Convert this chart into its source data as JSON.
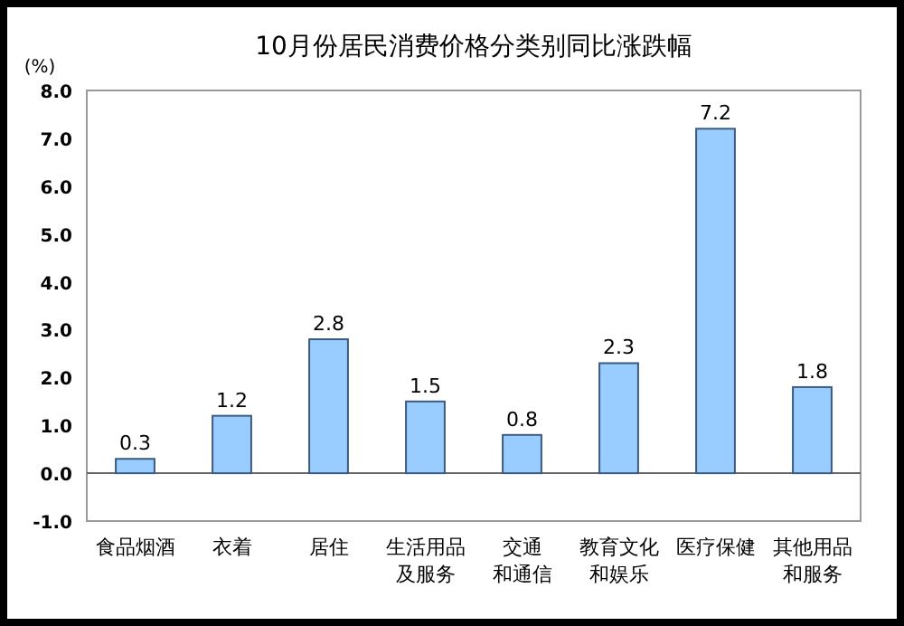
{
  "chart_data": {
    "type": "bar",
    "title": "10月份居民消费价格分类别同比涨跌幅",
    "ylabel": "(%)",
    "categories": [
      "食品烟酒",
      "衣着",
      "居住",
      "生活用品及服务",
      "交通和通信",
      "教育文化和娱乐",
      "医疗保健",
      "其他用品和服务"
    ],
    "values": [
      0.3,
      1.2,
      2.8,
      1.5,
      0.8,
      2.3,
      7.2,
      1.8
    ],
    "color": "#99ccff",
    "data_labels": true,
    "ylim": [
      -1,
      8
    ],
    "yticks": [
      {
        "value": 8,
        "label": "8.0"
      },
      {
        "value": 7,
        "label": "7.0"
      },
      {
        "value": 6,
        "label": "6.0"
      },
      {
        "value": 5,
        "label": "5.0"
      },
      {
        "value": 4,
        "label": "4.0"
      },
      {
        "value": 3,
        "label": "3.0"
      },
      {
        "value": 2,
        "label": "2.0"
      },
      {
        "value": 1,
        "label": "1.0"
      },
      {
        "value": 0,
        "label": "0.0"
      },
      {
        "value": -1,
        "label": "-1.0"
      }
    ]
  }
}
